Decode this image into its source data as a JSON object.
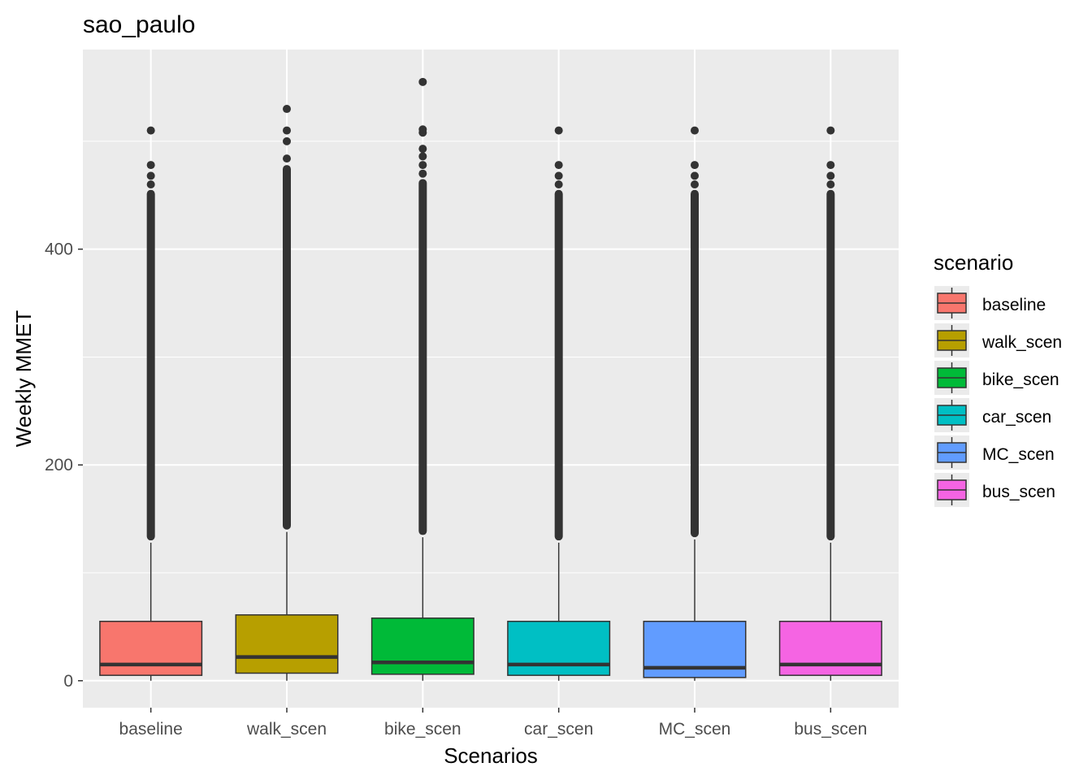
{
  "chart_data": {
    "type": "box",
    "title": "sao_paulo",
    "xlabel": "Scenarios",
    "ylabel": "Weekly MMET",
    "ylim": [
      -25,
      585
    ],
    "yticks": [
      0,
      200,
      400
    ],
    "grid": true,
    "legend": {
      "title": "scenario",
      "position": "right"
    },
    "categories": [
      "baseline",
      "walk_scen",
      "bike_scen",
      "car_scen",
      "MC_scen",
      "bus_scen"
    ],
    "series": [
      {
        "name": "baseline",
        "color": "#F8766D",
        "q1": 5,
        "median": 15,
        "q3": 55,
        "whisker_low": 0,
        "whisker_high": 128,
        "outlier_start": 130,
        "outlier_dense_end": 455,
        "outliers": [
          460,
          468,
          478,
          510
        ]
      },
      {
        "name": "walk_scen",
        "color": "#B79F00",
        "q1": 7,
        "median": 22,
        "q3": 61,
        "whisker_low": 0,
        "whisker_high": 138,
        "outlier_start": 140,
        "outlier_dense_end": 478,
        "outliers": [
          484,
          500,
          510,
          530
        ]
      },
      {
        "name": "bike_scen",
        "color": "#00BA38",
        "q1": 6,
        "median": 17,
        "q3": 58,
        "whisker_low": 0,
        "whisker_high": 133,
        "outlier_start": 135,
        "outlier_dense_end": 465,
        "outliers": [
          470,
          478,
          486,
          493,
          508,
          511,
          555
        ]
      },
      {
        "name": "car_scen",
        "color": "#00BFC4",
        "q1": 5,
        "median": 15,
        "q3": 55,
        "whisker_low": 0,
        "whisker_high": 128,
        "outlier_start": 130,
        "outlier_dense_end": 455,
        "outliers": [
          460,
          468,
          478,
          510
        ]
      },
      {
        "name": "MC_scen",
        "color": "#619CFF",
        "q1": 3,
        "median": 12,
        "q3": 55,
        "whisker_low": 0,
        "whisker_high": 131,
        "outlier_start": 133,
        "outlier_dense_end": 455,
        "outliers": [
          460,
          468,
          478,
          510
        ]
      },
      {
        "name": "bus_scen",
        "color": "#F564E3",
        "q1": 5,
        "median": 15,
        "q3": 55,
        "whisker_low": 0,
        "whisker_high": 128,
        "outlier_start": 130,
        "outlier_dense_end": 455,
        "outliers": [
          460,
          468,
          478,
          510
        ]
      }
    ]
  }
}
